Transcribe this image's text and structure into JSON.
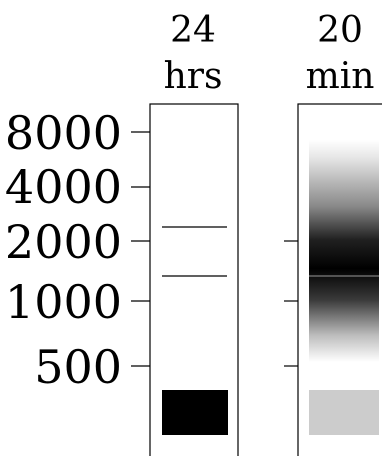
{
  "lanes": [
    {
      "id": "lane-24hrs",
      "label_line1": "24",
      "label_line2": "hrs",
      "bands": [
        {
          "kind": "thin-line",
          "marker": "upper-line"
        },
        {
          "kind": "thin-line",
          "marker": "lower-line"
        },
        {
          "kind": "solid-block",
          "color": "#000000"
        }
      ]
    },
    {
      "id": "lane-20min",
      "label_line1": "20",
      "label_line2": "min",
      "bands": [
        {
          "kind": "smear-gradient",
          "color_center": "#000000",
          "color_edge": "#ffffff"
        },
        {
          "kind": "thin-line",
          "marker": "smear-center-line"
        },
        {
          "kind": "solid-block",
          "color": "#cccccc"
        }
      ]
    }
  ],
  "size_axis": {
    "labels": [
      "8000",
      "4000",
      "2000",
      "1000",
      "500"
    ]
  },
  "colors": {
    "ink": "#000000",
    "background": "#ffffff",
    "lower_band_20min": "#cccccc"
  }
}
